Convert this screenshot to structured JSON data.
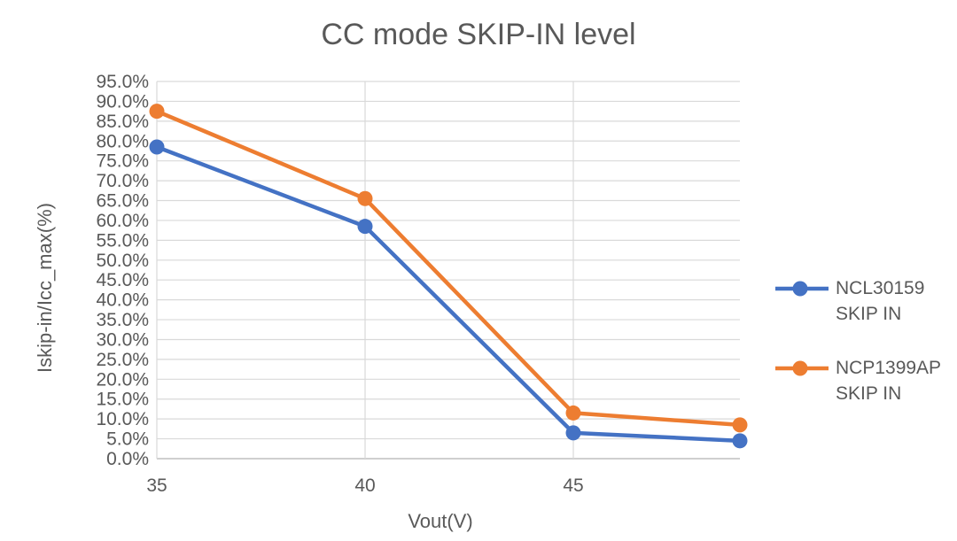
{
  "chart_data": {
    "type": "line",
    "title": "CC mode SKIP-IN level",
    "xlabel": "Vout(V)",
    "ylabel": "Iskip-in/Icc_max(%)",
    "x": [
      35,
      40,
      45,
      49
    ],
    "series": [
      {
        "name": "NCL30159 SKIP IN",
        "legend_lines": [
          "NCL30159",
          "SKIP IN"
        ],
        "color": "#4472C4",
        "values": [
          78.5,
          58.5,
          6.5,
          4.5
        ]
      },
      {
        "name": "NCP1399AP SKIP IN",
        "legend_lines": [
          "NCP1399AP",
          "SKIP IN"
        ],
        "color": "#ED7D31",
        "values": [
          87.5,
          65.5,
          11.5,
          8.5
        ]
      }
    ],
    "xlim": [
      35,
      49
    ],
    "ylim": [
      0,
      95
    ],
    "xticks": [
      35,
      40,
      45
    ],
    "ytick_step": 5,
    "ytick_format": "one_decimal_percent",
    "grid": true,
    "legend_position": "right",
    "marker": "circle",
    "colors": {
      "gridline": "#D9D9D9",
      "axis_line": "#BFBFBF",
      "text": "#595959",
      "background": "#FFFFFF"
    }
  }
}
